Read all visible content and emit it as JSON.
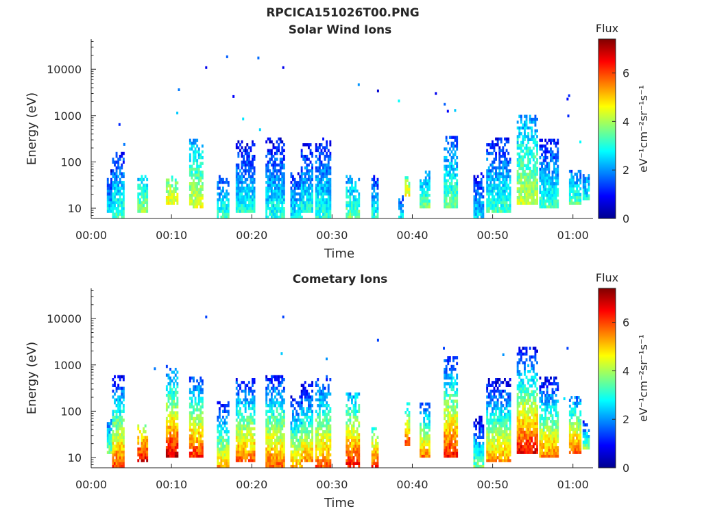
{
  "figure": {
    "title": "RPCICA151026T00.PNG"
  },
  "chart_data": [
    {
      "type": "heatmap",
      "title": "Solar Wind Ions",
      "xlabel": "Time",
      "ylabel": "Energy (eV)",
      "x_ticks": [
        "00:00",
        "00:10",
        "00:20",
        "00:30",
        "00:40",
        "00:50",
        "01:00"
      ],
      "x_range_minutes": [
        0,
        62.5
      ],
      "y_ticks": [
        "10",
        "100",
        "1000",
        "10000"
      ],
      "y_scale": "log",
      "y_range": [
        6,
        45000
      ],
      "colorbar": {
        "title": "Flux",
        "label": "eV⁻¹cm⁻²sr⁻¹s⁻¹",
        "ticks": [
          "0",
          "2",
          "4",
          "6"
        ],
        "range": [
          0,
          7.4
        ],
        "colormap": "jet"
      },
      "bursts": [
        {
          "t": 2.2,
          "w": 0.5,
          "emin": 8,
          "emax": 60,
          "peak": 2.6,
          "spread": 0.8
        },
        {
          "t": 3.3,
          "w": 1.4,
          "emin": 6,
          "emax": 150,
          "peak": 3.3,
          "spread": 1.0
        },
        {
          "t": 6.4,
          "w": 1.3,
          "emin": 8,
          "emax": 45,
          "peak": 3.8,
          "spread": 0.6
        },
        {
          "t": 10.0,
          "w": 1.4,
          "emin": 12,
          "emax": 45,
          "peak": 4.6,
          "spread": 0.6
        },
        {
          "t": 13.0,
          "w": 1.6,
          "emin": 10,
          "emax": 280,
          "peak": 4.4,
          "spread": 1.0
        },
        {
          "t": 16.4,
          "w": 1.5,
          "emin": 6,
          "emax": 45,
          "peak": 3.2,
          "spread": 0.8
        },
        {
          "t": 19.1,
          "w": 2.2,
          "emin": 8,
          "emax": 260,
          "peak": 3.0,
          "spread": 1.0
        },
        {
          "t": 22.8,
          "w": 2.2,
          "emin": 6,
          "emax": 300,
          "peak": 3.0,
          "spread": 1.0
        },
        {
          "t": 25.5,
          "w": 1.4,
          "emin": 6,
          "emax": 60,
          "peak": 2.8,
          "spread": 0.8
        },
        {
          "t": 26.8,
          "w": 1.4,
          "emin": 8,
          "emax": 250,
          "peak": 3.0,
          "spread": 1.0
        },
        {
          "t": 28.8,
          "w": 1.8,
          "emin": 6,
          "emax": 300,
          "peak": 3.1,
          "spread": 1.0
        },
        {
          "t": 32.5,
          "w": 1.6,
          "emin": 6,
          "emax": 45,
          "peak": 3.6,
          "spread": 0.8
        },
        {
          "t": 35.3,
          "w": 0.8,
          "emin": 6,
          "emax": 45,
          "peak": 3.0,
          "spread": 0.8
        },
        {
          "t": 38.5,
          "w": 0.5,
          "emin": 6,
          "emax": 20,
          "peak": 2.6,
          "spread": 0.6
        },
        {
          "t": 39.3,
          "w": 0.5,
          "emin": 18,
          "emax": 45,
          "peak": 4.6,
          "spread": 0.5
        },
        {
          "t": 41.5,
          "w": 1.2,
          "emin": 10,
          "emax": 60,
          "peak": 3.6,
          "spread": 0.8
        },
        {
          "t": 44.7,
          "w": 1.6,
          "emin": 10,
          "emax": 350,
          "peak": 3.6,
          "spread": 1.0
        },
        {
          "t": 48.2,
          "w": 1.2,
          "emin": 6,
          "emax": 60,
          "peak": 2.6,
          "spread": 0.8
        },
        {
          "t": 50.7,
          "w": 3.0,
          "emin": 8,
          "emax": 300,
          "peak": 3.2,
          "spread": 1.0
        },
        {
          "t": 54.3,
          "w": 2.6,
          "emin": 12,
          "emax": 1000,
          "peak": 4.2,
          "spread": 1.0
        },
        {
          "t": 57.0,
          "w": 2.4,
          "emin": 10,
          "emax": 300,
          "peak": 3.2,
          "spread": 1.0
        },
        {
          "t": 60.2,
          "w": 1.4,
          "emin": 12,
          "emax": 60,
          "peak": 3.4,
          "spread": 0.8
        },
        {
          "t": 61.6,
          "w": 0.8,
          "emin": 15,
          "emax": 60,
          "peak": 2.8,
          "spread": 0.6
        }
      ],
      "specks": [
        [
          3.4,
          620,
          1.2
        ],
        [
          4.0,
          230,
          1.8
        ],
        [
          10.8,
          3500,
          1.8
        ],
        [
          10.6,
          1100,
          2.4
        ],
        [
          14.2,
          10500,
          0.8
        ],
        [
          16.8,
          18000,
          1.6
        ],
        [
          17.6,
          2500,
          0.9
        ],
        [
          18.8,
          820,
          2.6
        ],
        [
          20.7,
          17000,
          1.7
        ],
        [
          20.9,
          480,
          2.5
        ],
        [
          23.8,
          10500,
          0.8
        ],
        [
          33.2,
          4500,
          2.0
        ],
        [
          35.6,
          3300,
          0.6
        ],
        [
          38.2,
          2000,
          2.8
        ],
        [
          42.8,
          2900,
          0.8
        ],
        [
          43.9,
          1700,
          1.6
        ],
        [
          44.3,
          1200,
          0.9
        ],
        [
          45.2,
          1250,
          2.4
        ],
        [
          59.3,
          950,
          1.2
        ],
        [
          59.4,
          2600,
          1.2
        ],
        [
          60.8,
          260,
          2.8
        ],
        [
          59.2,
          2200,
          1.0
        ]
      ]
    },
    {
      "type": "heatmap",
      "title": "Cometary Ions",
      "xlabel": "Time",
      "ylabel": "Energy (eV)",
      "x_ticks": [
        "00:00",
        "00:10",
        "00:20",
        "00:30",
        "00:40",
        "00:50",
        "01:00"
      ],
      "x_range_minutes": [
        0,
        62.5
      ],
      "y_ticks": [
        "10",
        "100",
        "1000",
        "10000"
      ],
      "y_scale": "log",
      "y_range": [
        6,
        45000
      ],
      "colorbar": {
        "title": "Flux",
        "label": "eV⁻¹cm⁻²sr⁻¹s⁻¹",
        "ticks": [
          "0",
          "2",
          "4",
          "6"
        ],
        "range": [
          0,
          7.4
        ],
        "colormap": "jet"
      },
      "bursts": [
        {
          "t": 2.2,
          "w": 0.5,
          "emin": 12,
          "emax": 60,
          "peak": 3.8,
          "spread": 1.0
        },
        {
          "t": 3.3,
          "w": 1.4,
          "emin": 6,
          "emax": 600,
          "peak": 6.0,
          "spread": 2.4
        },
        {
          "t": 6.4,
          "w": 1.3,
          "emin": 8,
          "emax": 45,
          "peak": 6.6,
          "spread": 1.2
        },
        {
          "t": 10.0,
          "w": 1.4,
          "emin": 10,
          "emax": 900,
          "peak": 6.8,
          "spread": 2.4
        },
        {
          "t": 13.0,
          "w": 1.6,
          "emin": 10,
          "emax": 550,
          "peak": 6.2,
          "spread": 2.2
        },
        {
          "t": 16.4,
          "w": 1.5,
          "emin": 6,
          "emax": 150,
          "peak": 5.2,
          "spread": 2.0
        },
        {
          "t": 19.1,
          "w": 2.2,
          "emin": 8,
          "emax": 450,
          "peak": 5.8,
          "spread": 2.2
        },
        {
          "t": 22.8,
          "w": 2.2,
          "emin": 6,
          "emax": 600,
          "peak": 5.8,
          "spread": 2.2
        },
        {
          "t": 25.5,
          "w": 1.4,
          "emin": 6,
          "emax": 200,
          "peak": 5.2,
          "spread": 2.0
        },
        {
          "t": 26.8,
          "w": 1.4,
          "emin": 8,
          "emax": 400,
          "peak": 5.4,
          "spread": 2.2
        },
        {
          "t": 28.8,
          "w": 1.8,
          "emin": 6,
          "emax": 600,
          "peak": 5.8,
          "spread": 2.2
        },
        {
          "t": 32.5,
          "w": 1.6,
          "emin": 6,
          "emax": 250,
          "peak": 6.4,
          "spread": 2.0
        },
        {
          "t": 35.3,
          "w": 0.8,
          "emin": 6,
          "emax": 40,
          "peak": 6.2,
          "spread": 1.4
        },
        {
          "t": 39.3,
          "w": 0.5,
          "emin": 18,
          "emax": 150,
          "peak": 6.0,
          "spread": 1.6
        },
        {
          "t": 41.5,
          "w": 1.2,
          "emin": 10,
          "emax": 150,
          "peak": 5.6,
          "spread": 2.0
        },
        {
          "t": 44.7,
          "w": 1.6,
          "emin": 10,
          "emax": 1500,
          "peak": 6.4,
          "spread": 2.4
        },
        {
          "t": 48.2,
          "w": 1.2,
          "emin": 6,
          "emax": 80,
          "peak": 3.6,
          "spread": 1.4
        },
        {
          "t": 50.7,
          "w": 3.0,
          "emin": 8,
          "emax": 500,
          "peak": 5.4,
          "spread": 2.2
        },
        {
          "t": 54.3,
          "w": 2.6,
          "emin": 12,
          "emax": 2200,
          "peak": 6.6,
          "spread": 2.6
        },
        {
          "t": 57.0,
          "w": 2.4,
          "emin": 10,
          "emax": 500,
          "peak": 5.6,
          "spread": 2.2
        },
        {
          "t": 60.2,
          "w": 1.4,
          "emin": 12,
          "emax": 200,
          "peak": 6.0,
          "spread": 2.0
        },
        {
          "t": 61.6,
          "w": 0.8,
          "emin": 15,
          "emax": 60,
          "peak": 3.8,
          "spread": 1.2
        }
      ],
      "specks": [
        [
          14.2,
          10500,
          1.4
        ],
        [
          23.8,
          10500,
          1.4
        ],
        [
          23.6,
          1700,
          2.4
        ],
        [
          29.2,
          1300,
          2.0
        ],
        [
          35.6,
          3300,
          1.4
        ],
        [
          43.8,
          2200,
          1.4
        ],
        [
          51.2,
          1600,
          2.0
        ],
        [
          59.2,
          2200,
          1.4
        ],
        [
          7.8,
          800,
          1.8
        ],
        [
          18.0,
          400,
          2.0
        ],
        [
          58.8,
          180,
          2.6
        ]
      ]
    }
  ]
}
